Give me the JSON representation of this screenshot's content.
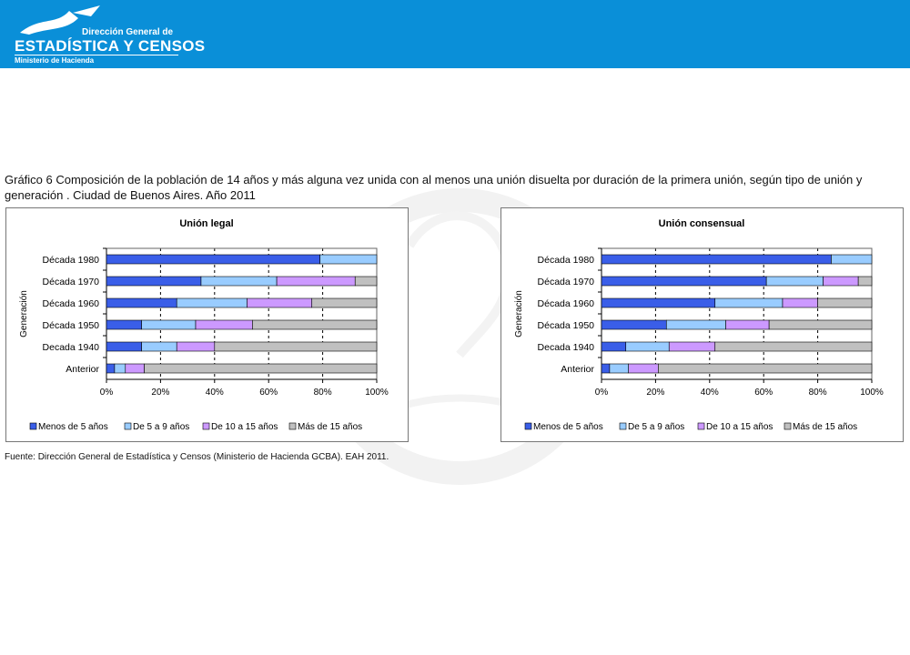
{
  "header": {
    "org_line1": "Dirección General de",
    "org_line2": "ESTADÍSTICA Y CENSOS",
    "org_line3": "Ministerio de Hacienda",
    "background_color": "#0a8fd8"
  },
  "title": "Gráfico 6 Composición de la población de 14 años y más alguna vez unida con al menos una unión disuelta por duración de la primera unión, según tipo de unión y generación . Ciudad de Buenos Aires. Año 2011",
  "source": "Fuente: Dirección General de Estadística  y Censos (Ministerio de Hacienda GCBA). EAH 2011.",
  "chart_data": [
    {
      "type": "bar",
      "orientation": "horizontal",
      "stacked": "100%",
      "title": "Unión legal",
      "ylabel": "Generación",
      "xlabel": "",
      "categories": [
        "Década 1980",
        "Década 1970",
        "Década 1960",
        "Década 1950",
        "Decada 1940",
        "Anterior"
      ],
      "xlim": [
        0,
        100
      ],
      "xticks": [
        "0%",
        "20%",
        "40%",
        "60%",
        "80%",
        "100%"
      ],
      "grid": "vertical dashed",
      "legend_position": "bottom",
      "series": [
        {
          "name": "Menos de 5 años",
          "color": "#3a5ee8",
          "values": [
            79,
            35,
            26,
            13,
            13,
            3
          ]
        },
        {
          "name": "De 5 a 9 años",
          "color": "#99ccff",
          "values": [
            21,
            28,
            26,
            20,
            13,
            4
          ]
        },
        {
          "name": "De 10 a 15 años",
          "color": "#cc99ff",
          "values": [
            0,
            29,
            24,
            21,
            14,
            7
          ]
        },
        {
          "name": "Más de 15 años",
          "color": "#c0c0c0",
          "values": [
            0,
            8,
            24,
            46,
            60,
            86
          ]
        }
      ]
    },
    {
      "type": "bar",
      "orientation": "horizontal",
      "stacked": "100%",
      "title": "Unión consensual",
      "ylabel": "Generación",
      "xlabel": "",
      "categories": [
        "Década 1980",
        "Década 1970",
        "Década 1960",
        "Década 1950",
        "Decada 1940",
        "Anterior"
      ],
      "xlim": [
        0,
        100
      ],
      "xticks": [
        "0%",
        "20%",
        "40%",
        "60%",
        "80%",
        "100%"
      ],
      "grid": "vertical dashed",
      "legend_position": "bottom",
      "series": [
        {
          "name": "Menos de 5 años",
          "color": "#3a5ee8",
          "values": [
            85,
            61,
            42,
            24,
            9,
            3
          ]
        },
        {
          "name": "De 5 a 9 años",
          "color": "#99ccff",
          "values": [
            15,
            21,
            25,
            22,
            16,
            7
          ]
        },
        {
          "name": "De 10 a 15 años",
          "color": "#cc99ff",
          "values": [
            0,
            13,
            13,
            16,
            17,
            11
          ]
        },
        {
          "name": "Más de 15 años",
          "color": "#c0c0c0",
          "values": [
            0,
            5,
            20,
            38,
            58,
            79
          ]
        }
      ]
    }
  ]
}
